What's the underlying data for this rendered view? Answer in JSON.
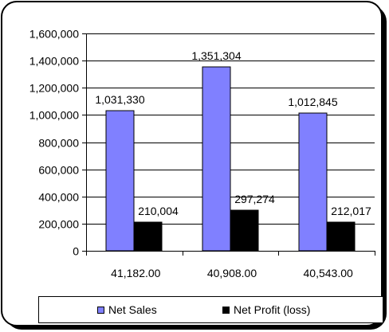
{
  "chart_data": {
    "type": "bar",
    "title": "",
    "xlabel": "",
    "ylabel": "",
    "categories": [
      "41,182.00",
      "40,908.00",
      "40,543.00"
    ],
    "series": [
      {
        "name": "Net Sales",
        "color": "#8080ff",
        "values": [
          1031330,
          1351304,
          1012845
        ],
        "labels": [
          "1,031,330",
          "1,351,304",
          "1,012,845"
        ]
      },
      {
        "name": "Net Profit (loss)",
        "color": "#000000",
        "values": [
          210004,
          297274,
          212017
        ],
        "labels": [
          "210,004",
          "297,274",
          "212,017"
        ]
      }
    ],
    "ylim": [
      0,
      1600000
    ],
    "yticks": [
      0,
      200000,
      400000,
      600000,
      800000,
      1000000,
      1200000,
      1400000,
      1600000
    ],
    "ytick_labels": [
      "0",
      "200,000",
      "400,000",
      "600,000",
      "800,000",
      "1,000,000",
      "1,200,000",
      "1,400,000",
      "1,600,000"
    ],
    "grid": true,
    "legend_position": "bottom"
  },
  "legend": {
    "items": [
      {
        "label": "Net Sales",
        "color": "#8080ff"
      },
      {
        "label": "Net Profit (loss)",
        "color": "#000000"
      }
    ]
  }
}
